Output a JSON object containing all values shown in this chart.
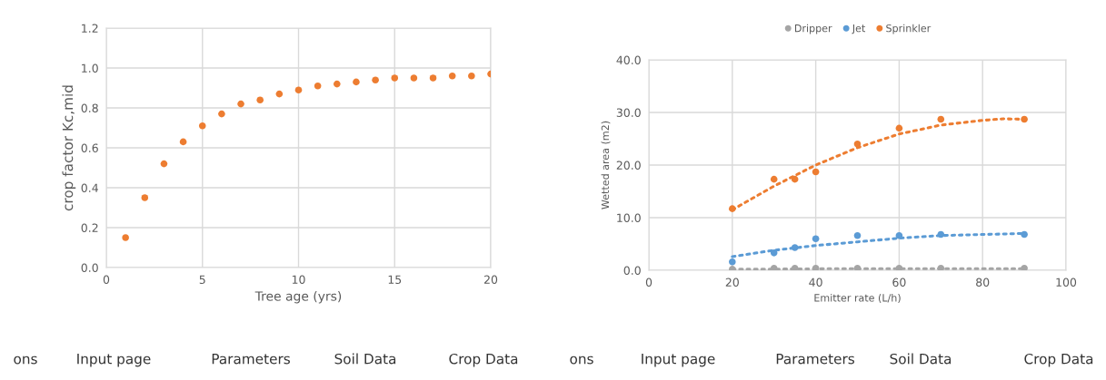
{
  "chart_data": [
    {
      "type": "scatter",
      "xlabel": "Tree age (yrs)",
      "ylabel": "crop factor Kc,mid",
      "x": [
        1,
        2,
        3,
        4,
        5,
        6,
        7,
        8,
        9,
        10,
        11,
        12,
        13,
        14,
        15,
        16,
        17,
        18,
        19,
        20
      ],
      "series": [
        {
          "color": "#ed7d31",
          "marker": "circle",
          "values": [
            0.15,
            0.35,
            0.52,
            0.63,
            0.71,
            0.77,
            0.82,
            0.84,
            0.87,
            0.89,
            0.91,
            0.92,
            0.93,
            0.94,
            0.95,
            0.95,
            0.95,
            0.96,
            0.96,
            0.97
          ]
        }
      ],
      "xlim": [
        0,
        20
      ],
      "xticks": [
        0,
        5,
        10,
        15,
        20
      ],
      "ylim": [
        0,
        1.2
      ],
      "yticks": [
        {
          "value": 0,
          "label": "0.0"
        },
        {
          "value": 0.2,
          "label": "0.2"
        },
        {
          "value": 0.4,
          "label": "0.4"
        },
        {
          "value": 0.6,
          "label": "0.6"
        },
        {
          "value": 0.8,
          "label": "0.8"
        },
        {
          "value": 1.0,
          "label": "1.0"
        },
        {
          "value": 1.2,
          "label": "1.2"
        }
      ],
      "grid": true,
      "annotations": [
        "ons",
        "Input page",
        "Parameters",
        "Soil Data",
        "Crop Data"
      ]
    },
    {
      "type": "scatter",
      "xlabel": "Emitter rate (L/h)",
      "ylabel": "Wetted area (m2)",
      "x": [
        20,
        30,
        35,
        40,
        50,
        60,
        70,
        90
      ],
      "series": [
        {
          "name": "Dripper",
          "color": "#a5a5a5",
          "marker": "circle",
          "values": [
            0.2,
            0.4,
            0.4,
            0.4,
            0.4,
            0.4,
            0.4,
            0.4
          ]
        },
        {
          "name": "Jet",
          "color": "#5b9bd5",
          "marker": "circle",
          "values": [
            1.6,
            3.3,
            4.3,
            6.0,
            6.6,
            6.6,
            6.8,
            6.8
          ]
        },
        {
          "name": "Sprinkler",
          "color": "#ed7d31",
          "marker": "circle",
          "values": [
            11.7,
            17.3,
            17.3,
            18.7,
            24.0,
            27.0,
            28.7,
            28.7
          ]
        },
        {
          "type": "line",
          "line_style": "dotted",
          "marker": "none",
          "color": "#a5a5a5",
          "x": [
            20,
            25,
            45,
            55,
            65,
            80,
            90
          ],
          "values": [
            0.2,
            0.2,
            0.3,
            0.3,
            0.3,
            0.3,
            0.3
          ]
        },
        {
          "type": "line",
          "line_style": "dotted",
          "marker": "none",
          "color": "#5b9bd5",
          "x": [
            20,
            30,
            40,
            50,
            60,
            70,
            80,
            90
          ],
          "values": [
            2.6,
            3.8,
            4.7,
            5.4,
            6.1,
            6.6,
            6.8,
            7.0
          ]
        },
        {
          "type": "line",
          "line_style": "dotted",
          "marker": "none",
          "color": "#ed7d31",
          "x": [
            20,
            30,
            40,
            50,
            60,
            70,
            80,
            85,
            90
          ],
          "values": [
            11.5,
            16.0,
            20.0,
            23.3,
            25.9,
            27.6,
            28.5,
            28.8,
            28.7
          ]
        }
      ],
      "xlim": [
        0,
        100
      ],
      "xticks": [
        0,
        20,
        40,
        60,
        80,
        100
      ],
      "ylim": [
        0,
        40
      ],
      "yticks": [
        {
          "value": 0,
          "label": "0.0"
        },
        {
          "value": 10,
          "label": "10.0"
        },
        {
          "value": 20,
          "label": "20.0"
        },
        {
          "value": 30,
          "label": "30.0"
        },
        {
          "value": 40,
          "label": "40.0"
        }
      ],
      "grid": true,
      "legend": "top",
      "annotations": [
        "ons",
        "Input page",
        "Parameters",
        "Soil Data",
        "Crop Data"
      ]
    }
  ]
}
